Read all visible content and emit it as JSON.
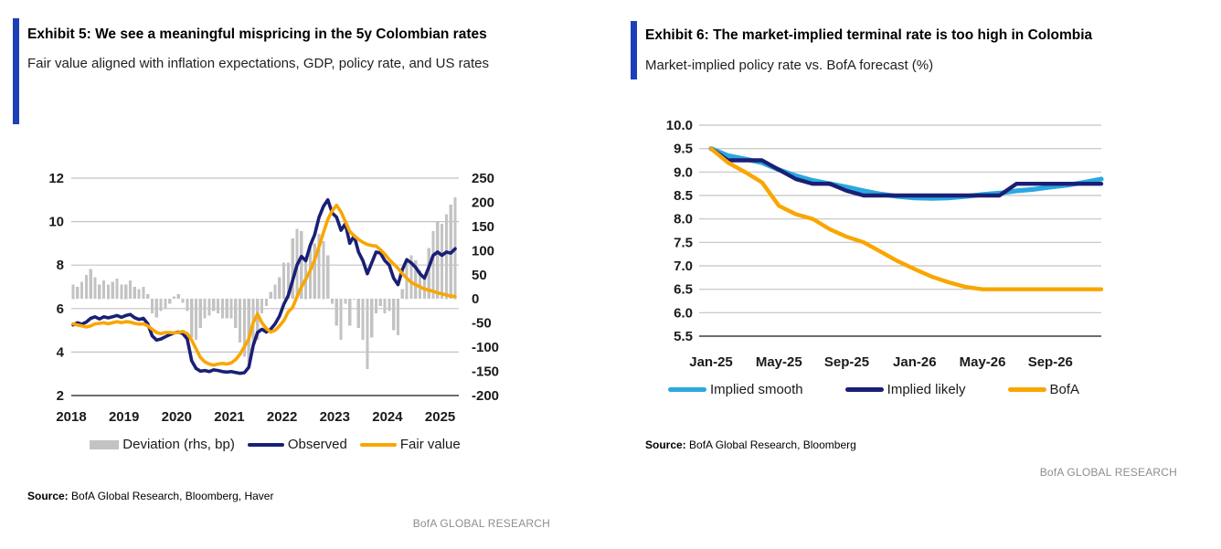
{
  "panels": {
    "left": {
      "source_label": "Source:",
      "source": "BofA Global Research, Bloomberg, Haver",
      "brand": "BofA GLOBAL RESEARCH"
    },
    "right": {
      "source_label": "Source:",
      "source": "BofA Global Research, Bloomberg",
      "brand": "BofA GLOBAL RESEARCH"
    }
  },
  "colors": {
    "accent_blue": "#1E3FBA",
    "navy": "#1A1F76",
    "light_blue": "#2BA8E0",
    "orange": "#F9A602",
    "bar_gray": "#C3C3C3",
    "grid_gray": "#C2C2C2",
    "axis_dark": "#3d3d3d"
  },
  "chart_data": [
    {
      "type": "combo-bar-line",
      "title": "Exhibit 5: We see a meaningful mispricing in the 5y Colombian rates",
      "subtitle": "Fair value aligned with inflation expectations, GDP, policy rate, and US rates",
      "x_frequency": "monthly",
      "x_start": "Jan-2018",
      "x_end": "Apr-2025",
      "x_tick_labels": [
        "2018",
        "2019",
        "2020",
        "2021",
        "2022",
        "2023",
        "2024",
        "2025"
      ],
      "left_axis": {
        "range": [
          2,
          12
        ],
        "ticks": [
          12,
          10,
          8,
          6,
          4,
          2
        ]
      },
      "right_axis": {
        "range": [
          -200,
          250
        ],
        "ticks": [
          250,
          200,
          150,
          100,
          50,
          0,
          -50,
          -100,
          -150,
          -200
        ],
        "unit": "bp"
      },
      "grid": "horizontal",
      "legend_position": "bottom",
      "series": [
        {
          "name": "Deviation (rhs, bp)",
          "type": "bar",
          "axis": "right",
          "color": "#C3C3C3",
          "values": [
            30,
            25,
            35,
            50,
            62,
            45,
            30,
            38,
            30,
            35,
            42,
            30,
            30,
            38,
            25,
            20,
            25,
            10,
            -30,
            -38,
            -25,
            -20,
            -10,
            5,
            10,
            -8,
            -25,
            -80,
            -85,
            -60,
            -40,
            -35,
            -25,
            -30,
            -40,
            -40,
            -40,
            -60,
            -90,
            -120,
            -130,
            -105,
            -85,
            -30,
            -15,
            15,
            30,
            45,
            75,
            75,
            125,
            145,
            140,
            85,
            115,
            115,
            135,
            120,
            90,
            -10,
            -55,
            -85,
            -10,
            -55,
            0,
            -60,
            -85,
            -145,
            -80,
            -30,
            -15,
            -30,
            -25,
            -65,
            -75,
            20,
            85,
            90,
            80,
            60,
            50,
            105,
            140,
            160,
            155,
            175,
            195,
            210
          ]
        },
        {
          "name": "Observed",
          "type": "line",
          "axis": "left",
          "color": "#1A1F76",
          "values": [
            5.25,
            5.35,
            5.28,
            5.38,
            5.55,
            5.62,
            5.52,
            5.62,
            5.57,
            5.62,
            5.68,
            5.6,
            5.68,
            5.73,
            5.58,
            5.5,
            5.55,
            5.3,
            4.75,
            4.55,
            4.6,
            4.7,
            4.8,
            4.88,
            4.92,
            4.85,
            4.6,
            3.6,
            3.25,
            3.12,
            3.15,
            3.1,
            3.18,
            3.15,
            3.1,
            3.08,
            3.1,
            3.06,
            3.02,
            3.05,
            3.3,
            4.3,
            4.9,
            5.05,
            4.92,
            5.05,
            5.3,
            5.65,
            6.2,
            6.6,
            7.3,
            8.0,
            8.4,
            8.2,
            8.9,
            9.4,
            10.2,
            10.7,
            11.0,
            10.4,
            10.2,
            9.6,
            9.9,
            9.0,
            9.35,
            8.6,
            8.2,
            7.6,
            8.1,
            8.6,
            8.55,
            8.2,
            8.0,
            7.4,
            7.1,
            7.8,
            8.25,
            8.1,
            7.9,
            7.6,
            7.4,
            7.9,
            8.45,
            8.6,
            8.45,
            8.6,
            8.55,
            8.75
          ]
        },
        {
          "name": "Fair value",
          "type": "line",
          "axis": "left",
          "color": "#F9A602",
          "values": [
            5.3,
            5.25,
            5.2,
            5.15,
            5.2,
            5.3,
            5.32,
            5.35,
            5.3,
            5.35,
            5.4,
            5.35,
            5.4,
            5.38,
            5.32,
            5.28,
            5.3,
            5.2,
            5.05,
            4.9,
            4.85,
            4.9,
            4.9,
            4.88,
            4.9,
            4.95,
            4.85,
            4.55,
            4.15,
            3.75,
            3.55,
            3.45,
            3.4,
            3.45,
            3.48,
            3.45,
            3.5,
            3.65,
            3.9,
            4.25,
            4.6,
            5.35,
            5.75,
            5.35,
            5.08,
            4.92,
            5.0,
            5.2,
            5.45,
            5.85,
            6.05,
            6.55,
            7.0,
            7.35,
            7.75,
            8.25,
            8.85,
            9.5,
            10.1,
            10.5,
            10.75,
            10.45,
            10.0,
            9.55,
            9.35,
            9.18,
            9.05,
            8.95,
            8.9,
            8.88,
            8.7,
            8.5,
            8.25,
            8.05,
            7.85,
            7.6,
            7.4,
            7.2,
            7.1,
            7.0,
            6.9,
            6.85,
            6.8,
            6.72,
            6.68,
            6.62,
            6.58,
            6.55
          ]
        }
      ]
    },
    {
      "type": "line",
      "title": "Exhibit 6: The market-implied terminal rate is too high in Colombia",
      "subtitle": "Market-implied policy rate vs. BofA forecast (%)",
      "x_frequency": "monthly",
      "x_start": "Jan-2025",
      "x_end": "Dec-2026",
      "x_tick_labels": [
        "Jan-25",
        "May-25",
        "Sep-25",
        "Jan-26",
        "May-26",
        "Sep-26"
      ],
      "x_tick_month_index": [
        0,
        4,
        8,
        12,
        16,
        20
      ],
      "y_axis": {
        "range": [
          5.5,
          10.0
        ],
        "ticks": [
          "10.0",
          "9.5",
          "9.0",
          "8.5",
          "8.0",
          "7.5",
          "7.0",
          "6.5",
          "6.0",
          "5.5"
        ],
        "unit": "%"
      },
      "grid": "horizontal",
      "legend_position": "bottom",
      "series": [
        {
          "name": "Implied smooth",
          "type": "line",
          "color": "#2BA8E0",
          "values": [
            9.5,
            9.35,
            9.28,
            9.2,
            9.05,
            8.92,
            8.82,
            8.75,
            8.68,
            8.6,
            8.53,
            8.48,
            8.45,
            8.44,
            8.45,
            8.48,
            8.52,
            8.55,
            8.6,
            8.63,
            8.68,
            8.72,
            8.78,
            8.85
          ]
        },
        {
          "name": "Implied likely",
          "type": "line",
          "color": "#1A1F76",
          "values": [
            9.5,
            9.25,
            9.25,
            9.25,
            9.05,
            8.85,
            8.75,
            8.75,
            8.6,
            8.5,
            8.5,
            8.5,
            8.5,
            8.5,
            8.5,
            8.5,
            8.5,
            8.5,
            8.75,
            8.75,
            8.75,
            8.75,
            8.75,
            8.75
          ]
        },
        {
          "name": "BofA",
          "type": "line",
          "color": "#F9A602",
          "values": [
            9.5,
            9.2,
            9.0,
            8.78,
            8.28,
            8.1,
            8.0,
            7.78,
            7.62,
            7.5,
            7.3,
            7.1,
            6.93,
            6.77,
            6.65,
            6.55,
            6.5,
            6.5,
            6.5,
            6.5,
            6.5,
            6.5,
            6.5,
            6.5
          ]
        }
      ]
    }
  ]
}
